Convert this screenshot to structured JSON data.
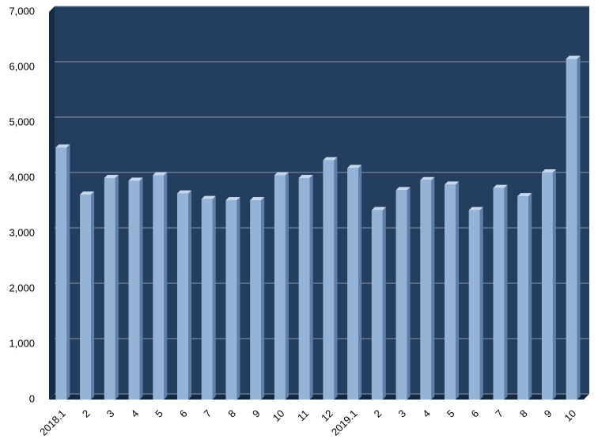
{
  "chart_data": {
    "type": "bar3d",
    "categories": [
      "2018.1",
      "2",
      "3",
      "4",
      "5",
      "6",
      "7",
      "8",
      "9",
      "10",
      "11",
      "12",
      "2019.1",
      "2",
      "3",
      "4",
      "5",
      "6",
      "7",
      "8",
      "9",
      "10"
    ],
    "values": [
      4550,
      3700,
      4000,
      3950,
      4050,
      3720,
      3620,
      3600,
      3600,
      4050,
      4000,
      4320,
      4180,
      3420,
      3780,
      3960,
      3880,
      3420,
      3820,
      3670,
      4100,
      6150
    ],
    "color": "#95b3d7",
    "ylim": [
      0,
      7000
    ],
    "yticks": [
      0,
      {
        "value": 1000,
        "label": "1,000"
      },
      {
        "value": 2000,
        "label": "2,000"
      },
      {
        "value": 3000,
        "label": "3,000"
      },
      {
        "value": 4000,
        "label": "4,000"
      },
      {
        "value": 5000,
        "label": "5,000"
      },
      {
        "value": 6000,
        "label": "6,000"
      },
      {
        "value": 7000,
        "label": "7,000"
      }
    ],
    "grid": true
  }
}
